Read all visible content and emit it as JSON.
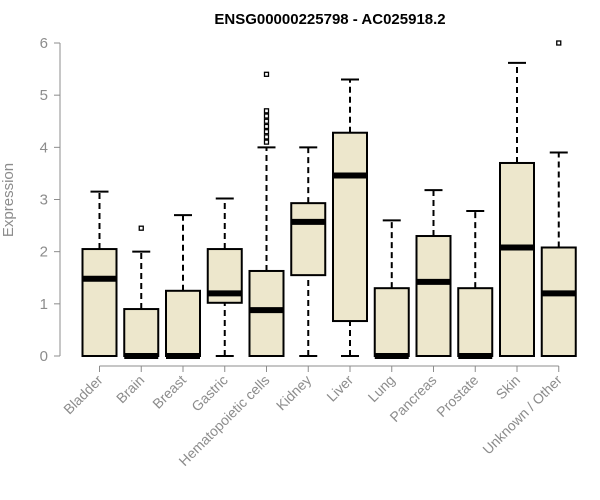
{
  "chart_data": {
    "type": "boxplot",
    "title": "ENSG00000225798 - AC025918.2",
    "xlabel": "",
    "ylabel": "Expression",
    "ylim": [
      0,
      6
    ],
    "yticks": [
      0,
      1,
      2,
      3,
      4,
      5,
      6
    ],
    "grid": false,
    "legend": "none",
    "colors": {
      "box_fill": "#ede7cc",
      "box_stroke": "#000000",
      "axis_text": "#8c8c8c"
    },
    "categories": [
      "Bladder",
      "Brain",
      "Breast",
      "Gastric",
      "Hematopoietic cells",
      "Kidney",
      "Liver",
      "Lung",
      "Pancreas",
      "Prostate",
      "Skin",
      "Unknown / Other"
    ],
    "boxes": [
      {
        "min": 0,
        "q1": 0,
        "median": 1.48,
        "q3": 2.05,
        "max": 3.15,
        "outliers": []
      },
      {
        "min": 0,
        "q1": 0,
        "median": 0,
        "q3": 0.9,
        "max": 2.0,
        "outliers": [
          2.45
        ]
      },
      {
        "min": 0,
        "q1": 0,
        "median": 0,
        "q3": 1.25,
        "max": 2.7,
        "outliers": []
      },
      {
        "min": 0,
        "q1": 1.02,
        "median": 1.2,
        "q3": 2.05,
        "max": 3.02,
        "outliers": []
      },
      {
        "min": 0,
        "q1": 0,
        "median": 0.88,
        "q3": 1.63,
        "max": 4.0,
        "outliers": [
          4.1,
          4.2,
          4.3,
          4.4,
          4.5,
          4.6,
          4.7,
          5.4
        ]
      },
      {
        "min": 0,
        "q1": 1.55,
        "median": 2.57,
        "q3": 2.93,
        "max": 4.0,
        "outliers": []
      },
      {
        "min": 0,
        "q1": 0.67,
        "median": 3.46,
        "q3": 4.28,
        "max": 5.3,
        "outliers": []
      },
      {
        "min": 0,
        "q1": 0,
        "median": 0,
        "q3": 1.3,
        "max": 2.6,
        "outliers": []
      },
      {
        "min": 0,
        "q1": 0,
        "median": 1.42,
        "q3": 2.3,
        "max": 3.18,
        "outliers": []
      },
      {
        "min": 0,
        "q1": 0,
        "median": 0,
        "q3": 1.3,
        "max": 2.78,
        "outliers": []
      },
      {
        "min": 0,
        "q1": 0,
        "median": 2.08,
        "q3": 3.7,
        "max": 5.62,
        "outliers": []
      },
      {
        "min": 0,
        "q1": 0,
        "median": 1.2,
        "q3": 2.08,
        "max": 3.9,
        "outliers": [
          6.0
        ]
      }
    ]
  }
}
